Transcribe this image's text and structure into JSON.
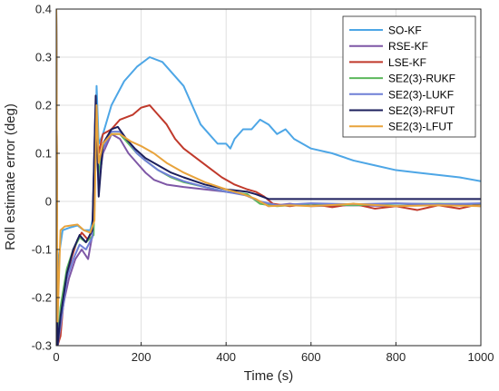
{
  "chart_data": {
    "type": "line",
    "title": "",
    "xlabel": "Time (s)",
    "ylabel": "Roll estimate error (deg)",
    "xlim": [
      0,
      1000
    ],
    "ylim": [
      -0.3,
      0.4
    ],
    "xticks": [
      0,
      200,
      400,
      600,
      800,
      1000
    ],
    "yticks": [
      -0.3,
      -0.2,
      -0.1,
      0,
      0.1,
      0.2,
      0.3,
      0.4
    ],
    "xtick_labels": [
      "0",
      "200",
      "400",
      "600",
      "800",
      "1000"
    ],
    "ytick_labels": [
      "-0.3",
      "-0.2",
      "-0.1",
      "0",
      "0.1",
      "0.2",
      "0.3",
      "0.4"
    ],
    "grid": true,
    "legend_position": "top-right",
    "series": [
      {
        "name": "SO-KF",
        "color": "#4da6e6",
        "points": [
          [
            0,
            0.4
          ],
          [
            3,
            -0.3
          ],
          [
            5,
            -0.12
          ],
          [
            15,
            -0.06
          ],
          [
            30,
            -0.055
          ],
          [
            50,
            -0.05
          ],
          [
            65,
            -0.06
          ],
          [
            80,
            -0.06
          ],
          [
            90,
            -0.02
          ],
          [
            95,
            0.24
          ],
          [
            100,
            0.12
          ],
          [
            110,
            0.14
          ],
          [
            130,
            0.2
          ],
          [
            160,
            0.25
          ],
          [
            190,
            0.28
          ],
          [
            220,
            0.3
          ],
          [
            250,
            0.29
          ],
          [
            280,
            0.26
          ],
          [
            300,
            0.24
          ],
          [
            320,
            0.2
          ],
          [
            340,
            0.16
          ],
          [
            360,
            0.14
          ],
          [
            380,
            0.12
          ],
          [
            400,
            0.12
          ],
          [
            410,
            0.11
          ],
          [
            420,
            0.13
          ],
          [
            440,
            0.15
          ],
          [
            460,
            0.15
          ],
          [
            480,
            0.17
          ],
          [
            500,
            0.16
          ],
          [
            520,
            0.14
          ],
          [
            540,
            0.15
          ],
          [
            560,
            0.13
          ],
          [
            600,
            0.11
          ],
          [
            650,
            0.1
          ],
          [
            700,
            0.085
          ],
          [
            750,
            0.075
          ],
          [
            800,
            0.065
          ],
          [
            850,
            0.06
          ],
          [
            900,
            0.055
          ],
          [
            950,
            0.05
          ],
          [
            1000,
            0.042
          ]
        ]
      },
      {
        "name": "RSE-KF",
        "color": "#7e57a6",
        "points": [
          [
            0,
            0.4
          ],
          [
            3,
            -0.3
          ],
          [
            10,
            -0.25
          ],
          [
            20,
            -0.2
          ],
          [
            30,
            -0.16
          ],
          [
            45,
            -0.12
          ],
          [
            60,
            -0.1
          ],
          [
            75,
            -0.12
          ],
          [
            85,
            -0.07
          ],
          [
            92,
            0.18
          ],
          [
            100,
            0.04
          ],
          [
            110,
            0.1
          ],
          [
            130,
            0.14
          ],
          [
            150,
            0.13
          ],
          [
            170,
            0.1
          ],
          [
            190,
            0.08
          ],
          [
            210,
            0.06
          ],
          [
            230,
            0.045
          ],
          [
            260,
            0.035
          ],
          [
            300,
            0.03
          ],
          [
            350,
            0.025
          ],
          [
            400,
            0.02
          ],
          [
            440,
            0.015
          ],
          [
            480,
            0.0
          ],
          [
            500,
            -0.01
          ],
          [
            550,
            -0.005
          ],
          [
            600,
            -0.01
          ],
          [
            700,
            -0.008
          ],
          [
            800,
            -0.01
          ],
          [
            900,
            -0.005
          ],
          [
            1000,
            -0.01
          ]
        ]
      },
      {
        "name": "LSE-KF",
        "color": "#c0392b",
        "points": [
          [
            0,
            0.4
          ],
          [
            3,
            -0.3
          ],
          [
            10,
            -0.28
          ],
          [
            20,
            -0.18
          ],
          [
            35,
            -0.12
          ],
          [
            50,
            -0.08
          ],
          [
            60,
            -0.065
          ],
          [
            75,
            -0.08
          ],
          [
            88,
            -0.05
          ],
          [
            94,
            0.17
          ],
          [
            100,
            0.1
          ],
          [
            110,
            0.14
          ],
          [
            130,
            0.15
          ],
          [
            150,
            0.17
          ],
          [
            180,
            0.18
          ],
          [
            200,
            0.195
          ],
          [
            220,
            0.2
          ],
          [
            240,
            0.18
          ],
          [
            260,
            0.16
          ],
          [
            280,
            0.13
          ],
          [
            300,
            0.11
          ],
          [
            330,
            0.09
          ],
          [
            360,
            0.07
          ],
          [
            390,
            0.05
          ],
          [
            420,
            0.035
          ],
          [
            450,
            0.025
          ],
          [
            470,
            0.02
          ],
          [
            490,
            0.01
          ],
          [
            510,
            -0.005
          ],
          [
            550,
            -0.01
          ],
          [
            600,
            -0.005
          ],
          [
            650,
            -0.012
          ],
          [
            700,
            -0.005
          ],
          [
            750,
            -0.015
          ],
          [
            800,
            -0.01
          ],
          [
            850,
            -0.018
          ],
          [
            900,
            -0.008
          ],
          [
            950,
            -0.015
          ],
          [
            1000,
            -0.005
          ]
        ]
      },
      {
        "name": "SE2(3)-RUKF",
        "color": "#5cb85c",
        "points": [
          [
            0,
            0.4
          ],
          [
            3,
            -0.3
          ],
          [
            10,
            -0.22
          ],
          [
            25,
            -0.14
          ],
          [
            40,
            -0.1
          ],
          [
            55,
            -0.075
          ],
          [
            70,
            -0.085
          ],
          [
            88,
            -0.07
          ],
          [
            94,
            0.19
          ],
          [
            100,
            0.05
          ],
          [
            110,
            0.12
          ],
          [
            130,
            0.14
          ],
          [
            150,
            0.14
          ],
          [
            170,
            0.12
          ],
          [
            190,
            0.1
          ],
          [
            210,
            0.085
          ],
          [
            240,
            0.065
          ],
          [
            270,
            0.05
          ],
          [
            300,
            0.04
          ],
          [
            350,
            0.03
          ],
          [
            400,
            0.02
          ],
          [
            450,
            0.015
          ],
          [
            480,
            -0.005
          ],
          [
            520,
            -0.01
          ],
          [
            600,
            -0.005
          ],
          [
            700,
            -0.008
          ],
          [
            800,
            -0.005
          ],
          [
            900,
            -0.005
          ],
          [
            1000,
            -0.005
          ]
        ]
      },
      {
        "name": "SE2(3)-LUKF",
        "color": "#6f7fd6",
        "points": [
          [
            0,
            0.4
          ],
          [
            3,
            -0.3
          ],
          [
            10,
            -0.26
          ],
          [
            25,
            -0.16
          ],
          [
            40,
            -0.12
          ],
          [
            55,
            -0.09
          ],
          [
            70,
            -0.1
          ],
          [
            85,
            -0.075
          ],
          [
            92,
            0.17
          ],
          [
            100,
            0.03
          ],
          [
            110,
            0.11
          ],
          [
            130,
            0.145
          ],
          [
            150,
            0.145
          ],
          [
            170,
            0.125
          ],
          [
            190,
            0.1
          ],
          [
            210,
            0.085
          ],
          [
            240,
            0.065
          ],
          [
            270,
            0.052
          ],
          [
            300,
            0.042
          ],
          [
            350,
            0.03
          ],
          [
            400,
            0.02
          ],
          [
            450,
            0.012
          ],
          [
            480,
            0.0
          ],
          [
            520,
            -0.008
          ],
          [
            600,
            -0.004
          ],
          [
            700,
            -0.006
          ],
          [
            800,
            -0.004
          ],
          [
            900,
            -0.006
          ],
          [
            1000,
            -0.004
          ]
        ]
      },
      {
        "name": "SE2(3)-RFUT",
        "color": "#1c1f5c",
        "points": [
          [
            0,
            0.4
          ],
          [
            3,
            -0.3
          ],
          [
            10,
            -0.24
          ],
          [
            25,
            -0.15
          ],
          [
            40,
            -0.1
          ],
          [
            55,
            -0.07
          ],
          [
            70,
            -0.085
          ],
          [
            85,
            -0.06
          ],
          [
            93,
            0.22
          ],
          [
            100,
            0.01
          ],
          [
            110,
            0.12
          ],
          [
            130,
            0.15
          ],
          [
            145,
            0.155
          ],
          [
            165,
            0.13
          ],
          [
            185,
            0.11
          ],
          [
            210,
            0.09
          ],
          [
            240,
            0.075
          ],
          [
            270,
            0.06
          ],
          [
            300,
            0.05
          ],
          [
            350,
            0.035
          ],
          [
            400,
            0.025
          ],
          [
            450,
            0.02
          ],
          [
            470,
            0.015
          ],
          [
            500,
            0.005
          ],
          [
            600,
            0.005
          ],
          [
            700,
            0.005
          ],
          [
            800,
            0.005
          ],
          [
            900,
            0.005
          ],
          [
            1000,
            0.005
          ]
        ]
      },
      {
        "name": "SE2(3)-LFUT",
        "color": "#e8a33c",
        "points": [
          [
            0,
            0.4
          ],
          [
            3,
            -0.25
          ],
          [
            10,
            -0.06
          ],
          [
            20,
            -0.052
          ],
          [
            35,
            -0.05
          ],
          [
            50,
            -0.048
          ],
          [
            65,
            -0.06
          ],
          [
            80,
            -0.065
          ],
          [
            90,
            -0.04
          ],
          [
            95,
            0.2
          ],
          [
            100,
            0.08
          ],
          [
            110,
            0.12
          ],
          [
            130,
            0.14
          ],
          [
            150,
            0.14
          ],
          [
            175,
            0.125
          ],
          [
            200,
            0.115
          ],
          [
            230,
            0.1
          ],
          [
            260,
            0.08
          ],
          [
            300,
            0.06
          ],
          [
            350,
            0.04
          ],
          [
            400,
            0.025
          ],
          [
            440,
            0.015
          ],
          [
            470,
            0.005
          ],
          [
            500,
            -0.01
          ],
          [
            550,
            -0.008
          ],
          [
            600,
            -0.01
          ],
          [
            700,
            -0.005
          ],
          [
            800,
            -0.01
          ],
          [
            900,
            -0.008
          ],
          [
            1000,
            -0.01
          ]
        ]
      }
    ]
  }
}
